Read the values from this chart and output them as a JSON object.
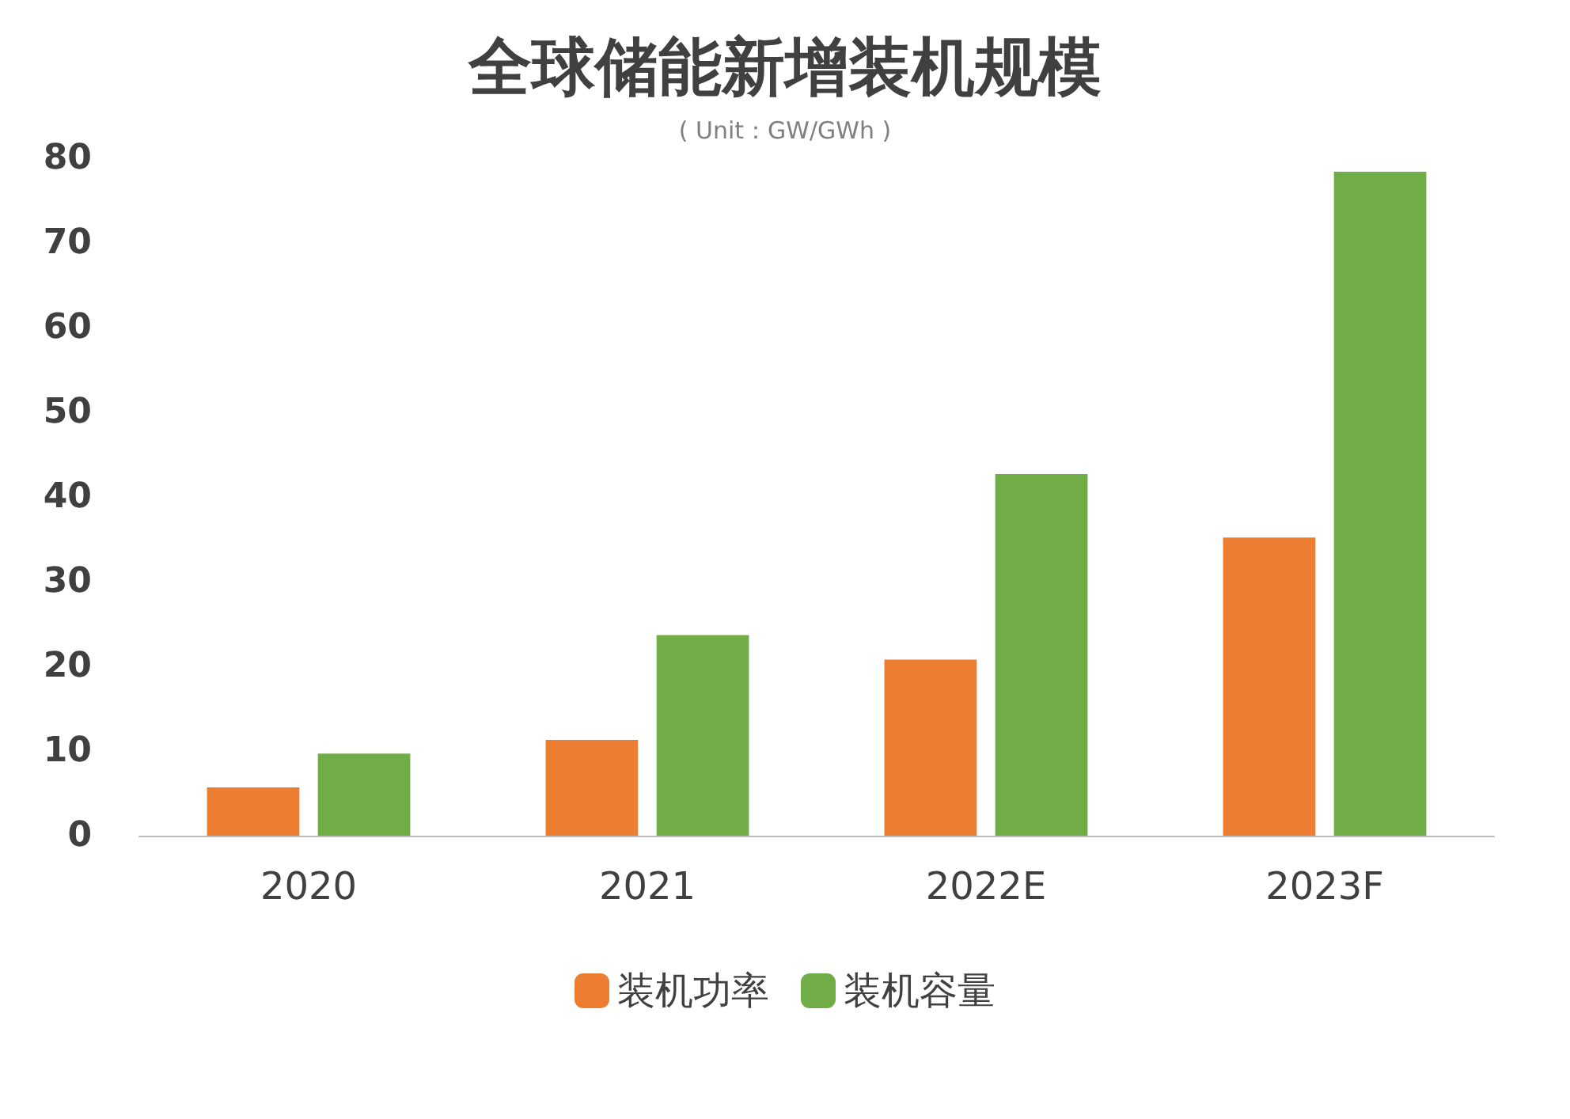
{
  "chart_data": {
    "type": "bar",
    "title": "全球储能新增装机规模",
    "subtitle": "( Unit：GW/GWh )",
    "categories": [
      "2020",
      "2021",
      "2022E",
      "2023F"
    ],
    "series": [
      {
        "name": "装机功率",
        "color": "#ed7d31",
        "values": [
          5.7,
          11.3,
          20.8,
          35.2
        ]
      },
      {
        "name": "装机容量",
        "color": "#70ad47",
        "values": [
          9.7,
          23.7,
          42.7,
          78.4
        ]
      }
    ],
    "ylim": [
      0,
      80
    ],
    "yticks": [
      0,
      10,
      20,
      30,
      40,
      50,
      60,
      70,
      80
    ],
    "grid": false,
    "legend": "bottom"
  }
}
